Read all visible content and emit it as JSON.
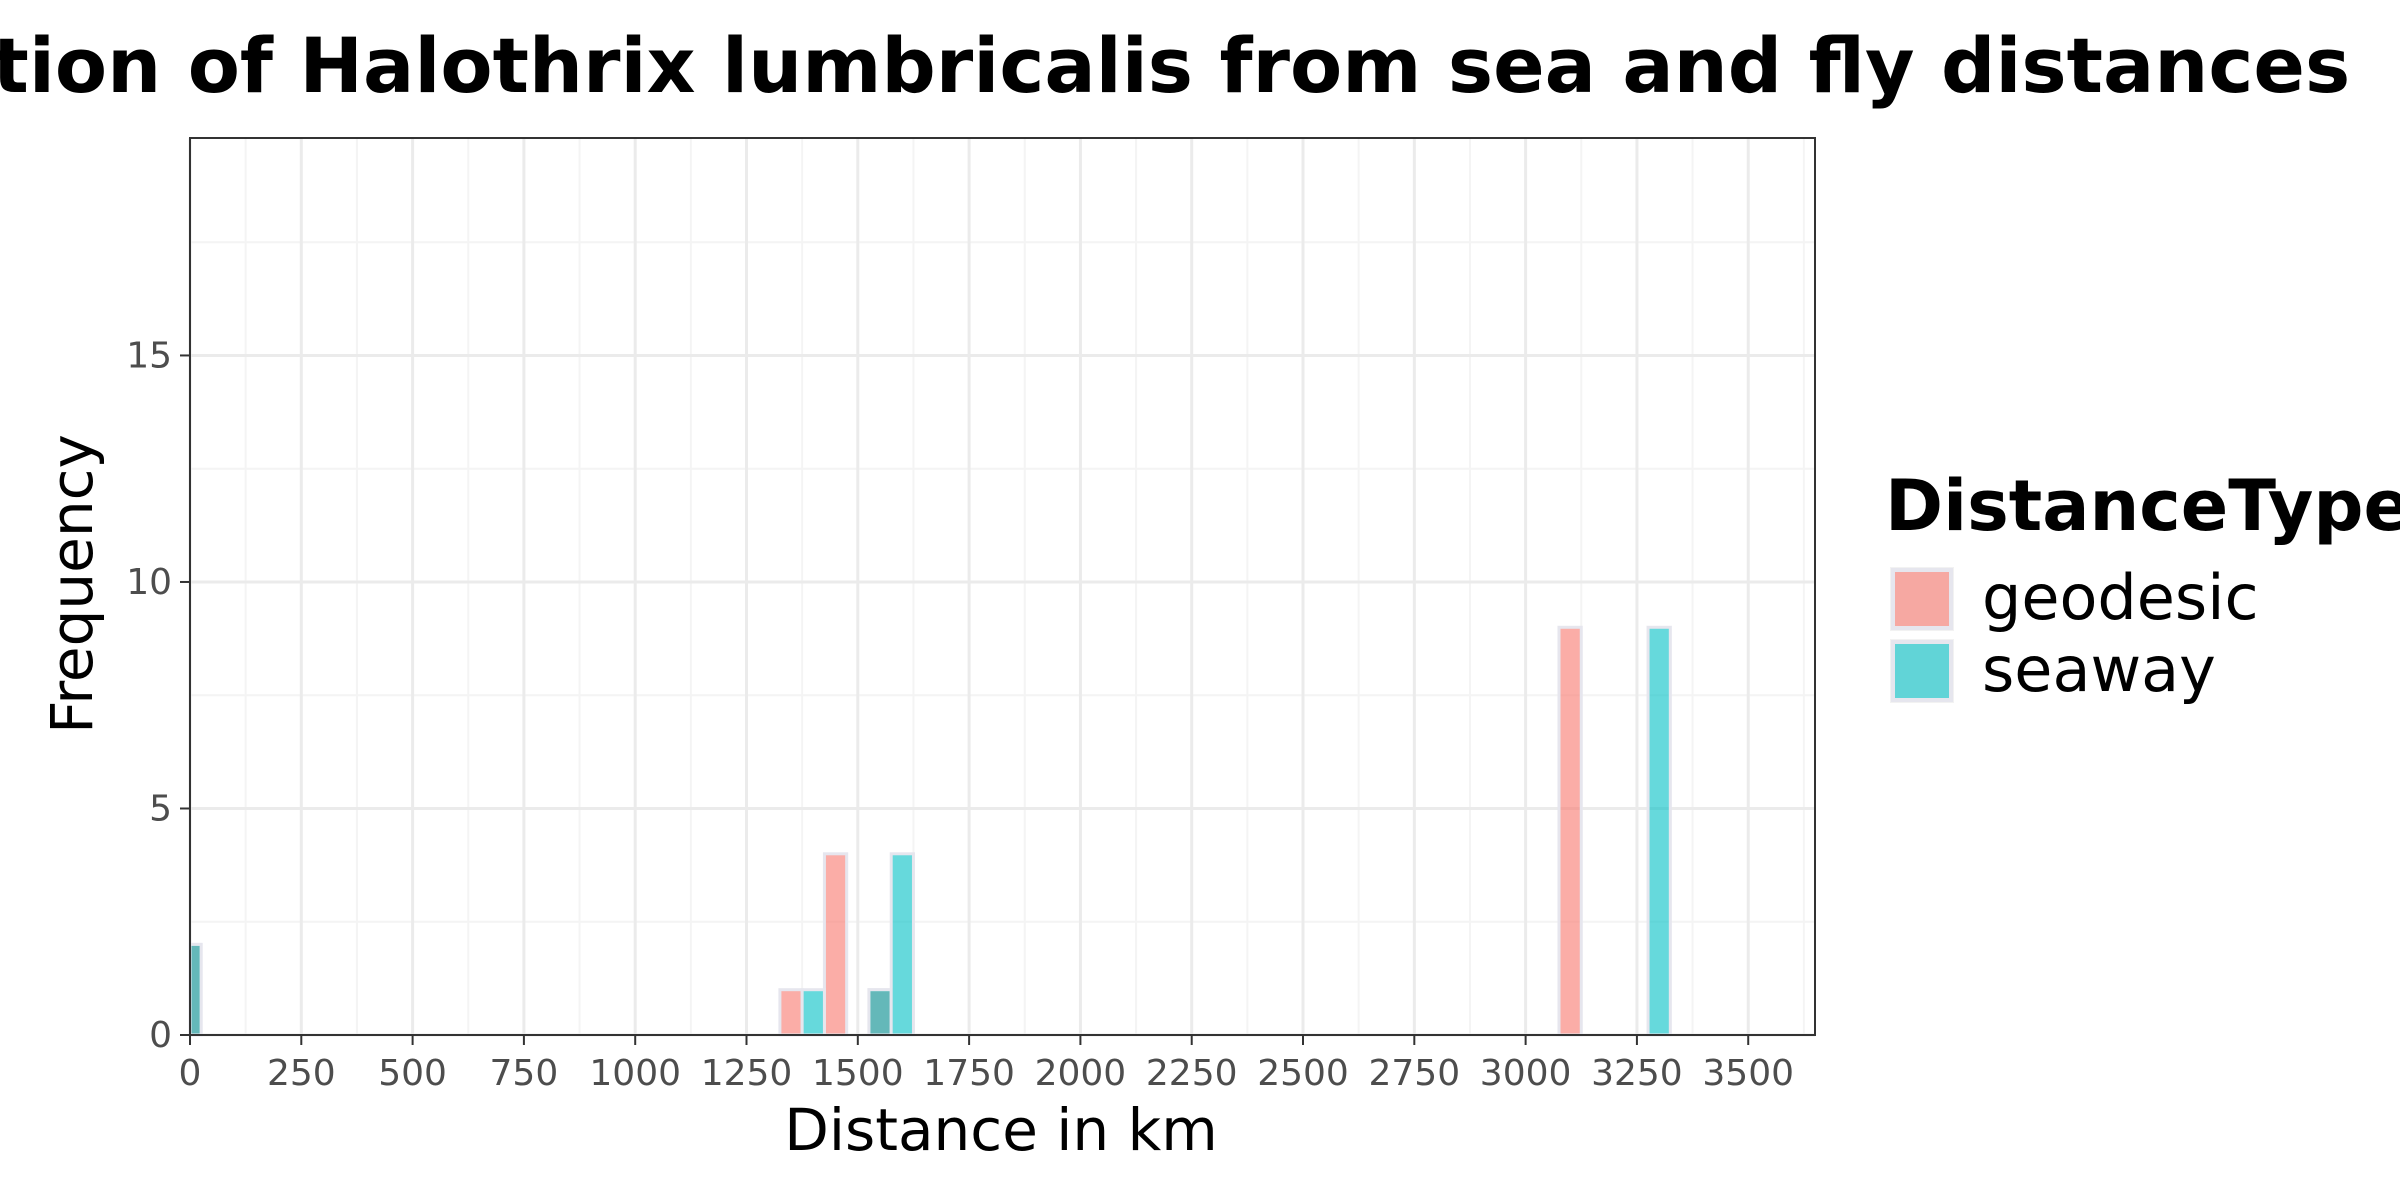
{
  "chart_data": {
    "type": "bar",
    "title": "Distribution of Halothrix lumbricalis from sea and fly distances",
    "xlabel": "Distance in km",
    "ylabel": "Frequency",
    "xlim": [
      0,
      3650
    ],
    "ylim": [
      0,
      19.8
    ],
    "xticks": [
      0,
      250,
      500,
      750,
      1000,
      1250,
      1500,
      1750,
      2000,
      2250,
      2500,
      2750,
      3000,
      3250,
      3500
    ],
    "yticks": [
      0,
      5,
      10,
      15
    ],
    "grid": true,
    "bin_width": 50,
    "legend": {
      "title": "DistanceType",
      "position": "right"
    },
    "series": [
      {
        "name": "geodesic",
        "color": "#F8766D",
        "bins": [
          {
            "x": 0,
            "count": 2
          },
          {
            "x": 1350,
            "count": 1
          },
          {
            "x": 1450,
            "count": 4
          },
          {
            "x": 1550,
            "count": 1
          },
          {
            "x": 3100,
            "count": 9
          }
        ]
      },
      {
        "name": "seaway",
        "color": "#00BFC4",
        "bins": [
          {
            "x": 0,
            "count": 2
          },
          {
            "x": 1400,
            "count": 1
          },
          {
            "x": 1550,
            "count": 1
          },
          {
            "x": 1600,
            "count": 4
          },
          {
            "x": 3300,
            "count": 9
          }
        ]
      }
    ]
  },
  "style": {
    "grid_major_color": "#ebebeb",
    "grid_minor_color": "#f4f4f4",
    "panel_border_color": "#333333",
    "bar_outline_color": "#e6e6ee",
    "bar_opacity": 0.6
  }
}
